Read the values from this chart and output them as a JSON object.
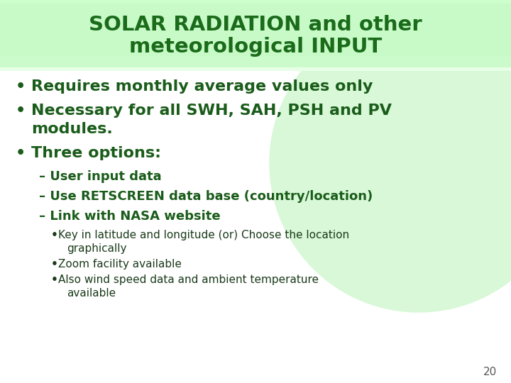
{
  "title_line1": "SOLAR RADIATION and other",
  "title_line2": "meteorological INPUT",
  "title_color": "#1a6b1a",
  "title_bg_top": "#e8ffe8",
  "title_bg_mid": "#bbffbb",
  "background_color": "#ffffff",
  "circle_color": "#d8f8d8",
  "page_number": "20",
  "bullet_color": "#1a5c1a",
  "dark_green": "#1a3a1a"
}
